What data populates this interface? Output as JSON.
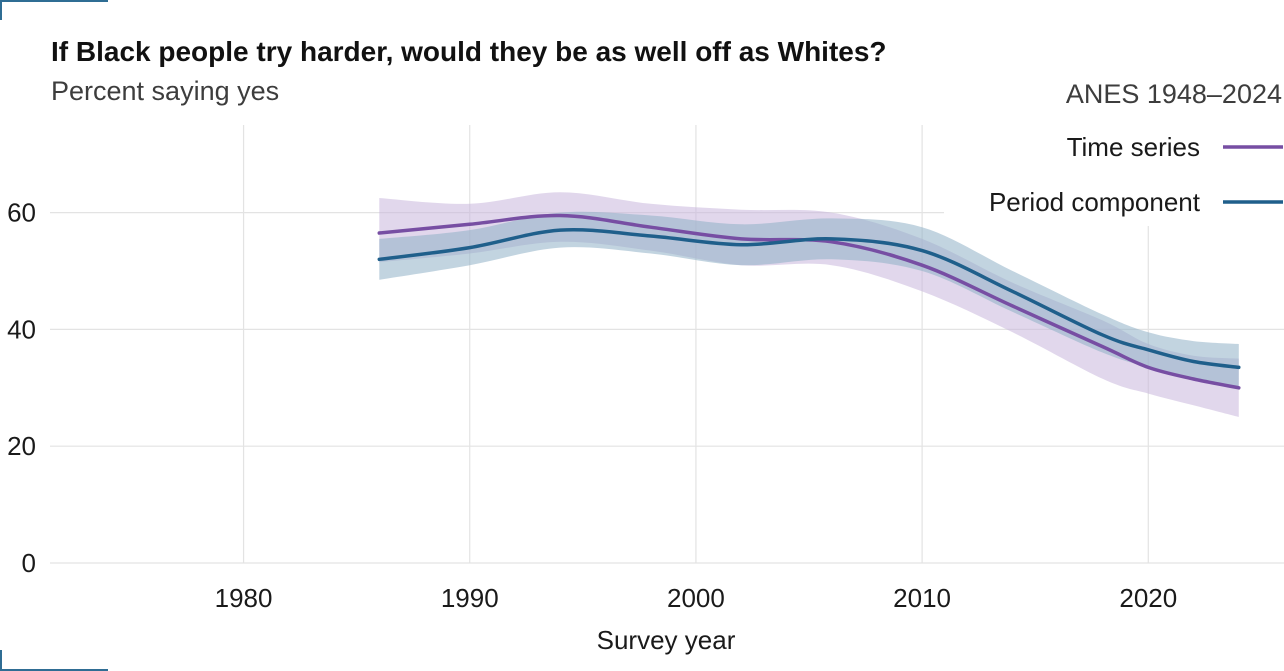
{
  "header": {
    "title": "If Black people try harder, would they be as well off as Whites?",
    "subtitle": "Percent saying yes",
    "source": "ANES 1948–2024"
  },
  "colors": {
    "time_series": "#774ea3",
    "period_component": "#1f5f8b",
    "time_series_band": "#c8b6dc",
    "period_component_band": "#8fb0c6",
    "grid": "#e3e3e3",
    "corner_marks": "#2f6d94"
  },
  "chart_data": {
    "type": "line",
    "title": "If Black people try harder, would they be as well off as Whites?",
    "subtitle": "Percent saying yes",
    "xlabel": "Survey year",
    "ylabel": "",
    "xlim": [
      1971,
      2026
    ],
    "ylim": [
      0,
      75
    ],
    "xticks": [
      1980,
      1990,
      2000,
      2010,
      2020
    ],
    "yticks": [
      0,
      20,
      40,
      60
    ],
    "grid": true,
    "legend": "top-right",
    "series": [
      {
        "name": "Time series",
        "x": [
          1986,
          1990,
          1994,
          1998,
          2002,
          2006,
          2010,
          2014,
          2018,
          2020,
          2022,
          2024
        ],
        "y": [
          56.5,
          58.0,
          59.5,
          57.5,
          55.5,
          55.0,
          51.0,
          44.0,
          37.0,
          33.5,
          31.5,
          30.0
        ],
        "lower": [
          51.5,
          53.0,
          55.0,
          53.5,
          51.0,
          51.0,
          46.5,
          39.5,
          31.5,
          29.0,
          27.0,
          25.0
        ],
        "upper": [
          62.5,
          61.5,
          63.5,
          61.5,
          60.5,
          60.0,
          55.5,
          48.0,
          41.5,
          37.5,
          35.5,
          35.0
        ]
      },
      {
        "name": "Period component",
        "x": [
          1986,
          1990,
          1994,
          1998,
          2002,
          2006,
          2010,
          2014,
          2018,
          2020,
          2022,
          2024
        ],
        "y": [
          52.0,
          54.0,
          57.0,
          56.0,
          54.5,
          55.5,
          53.5,
          46.5,
          39.0,
          36.5,
          34.5,
          33.5
        ],
        "lower": [
          48.5,
          51.0,
          54.0,
          53.0,
          51.0,
          52.0,
          50.0,
          43.0,
          36.0,
          33.5,
          31.5,
          30.0
        ],
        "upper": [
          55.5,
          57.0,
          60.0,
          59.5,
          58.0,
          59.0,
          57.5,
          50.0,
          42.5,
          39.5,
          38.0,
          37.5
        ]
      }
    ]
  }
}
